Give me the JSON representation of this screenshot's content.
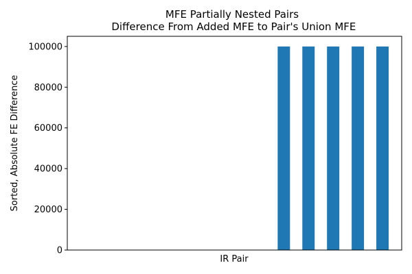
{
  "chart_data": {
    "type": "bar",
    "title_line1": "MFE Partially Nested Pairs",
    "title_line2": " Difference From Added MFE to Pair's Union MFE",
    "xlabel": "IR Pair",
    "ylabel": "Sorted, Absolute FE Difference",
    "values": [
      0,
      0,
      0,
      0,
      0,
      0,
      0,
      0,
      100000,
      100000,
      100000,
      100000,
      100000
    ],
    "ylim": [
      0,
      105000
    ],
    "yticks": [
      0,
      20000,
      40000,
      60000,
      80000,
      100000
    ],
    "x_ticks_shown": false,
    "grid": false,
    "bar_color": "#1f77b4"
  }
}
